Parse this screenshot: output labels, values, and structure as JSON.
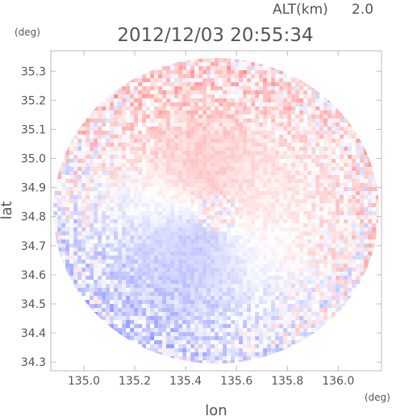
{
  "header": {
    "altitude_label": "ALT(km)",
    "altitude_value": "2.0",
    "timestamp": "2012/12/03 20:55:34",
    "y_unit": "(deg)",
    "x_unit": "(deg)"
  },
  "chart_data": {
    "type": "heatmap",
    "title": "2012/12/03 20:55:34",
    "xlabel": "lon",
    "ylabel": "lat",
    "xlim": [
      134.87,
      136.17
    ],
    "ylim": [
      34.27,
      35.37
    ],
    "x_ticks": [
      135.0,
      135.2,
      135.4,
      135.6,
      135.8,
      136.0
    ],
    "x_tick_labels": [
      "135.0",
      "135.2",
      "135.4",
      "135.6",
      "135.8",
      "136.0"
    ],
    "y_ticks": [
      34.3,
      34.4,
      34.5,
      34.6,
      34.7,
      34.8,
      34.9,
      35.0,
      35.1,
      35.2,
      35.3
    ],
    "y_tick_labels": [
      "34.3",
      "34.4",
      "34.5",
      "34.6",
      "34.7",
      "34.8",
      "34.9",
      "35.0",
      "35.1",
      "35.2",
      "35.3"
    ],
    "radar_center": {
      "lon": 135.52,
      "lat": 34.82
    },
    "radar_radius_deg": {
      "lon": 0.64,
      "lat": 0.525
    },
    "colormap": {
      "negative": "#6e78ff",
      "zero": "#ffffff",
      "positive": "#ff5a5a"
    },
    "frame_color": "#bbbbbb",
    "text_color": "#555555"
  }
}
